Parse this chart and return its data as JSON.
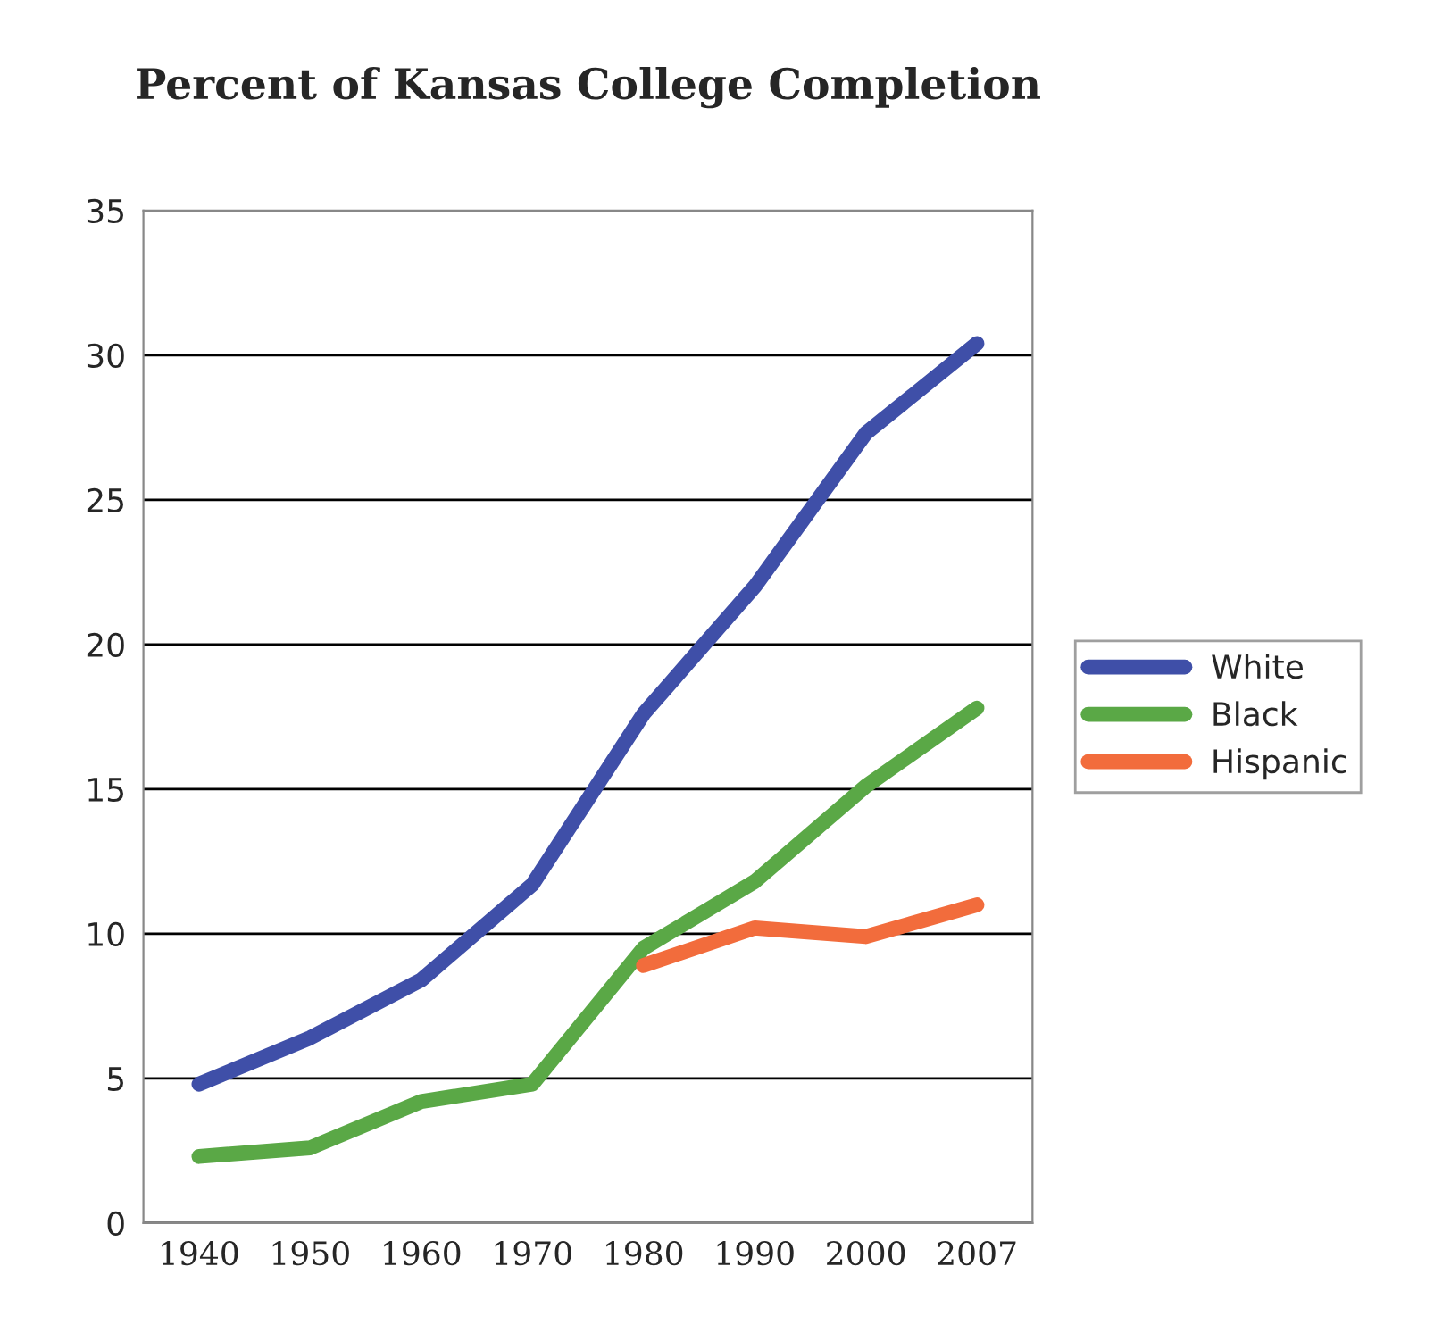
{
  "chart_data": {
    "type": "line",
    "title": "Percent of Kansas College Completion",
    "categories": [
      "1940",
      "1950",
      "1960",
      "1970",
      "1980",
      "1990",
      "2000",
      "2007"
    ],
    "series": [
      {
        "name": "White",
        "color": "#3f4fa8",
        "values": [
          4.8,
          6.4,
          8.4,
          11.7,
          17.6,
          22.0,
          27.3,
          30.4
        ]
      },
      {
        "name": "Black",
        "color": "#5aa846",
        "values": [
          2.3,
          2.6,
          4.2,
          4.8,
          9.5,
          11.8,
          15.1,
          17.8
        ]
      },
      {
        "name": "Hispanic",
        "color": "#f26c3c",
        "values": [
          null,
          null,
          null,
          null,
          8.9,
          10.2,
          9.9,
          11.0
        ]
      }
    ],
    "ylim": [
      0,
      35
    ],
    "yticks": [
      0,
      5,
      10,
      15,
      20,
      25,
      30,
      35
    ],
    "grid": "y",
    "legend": "right",
    "marker": "none",
    "line_style": "solid"
  }
}
